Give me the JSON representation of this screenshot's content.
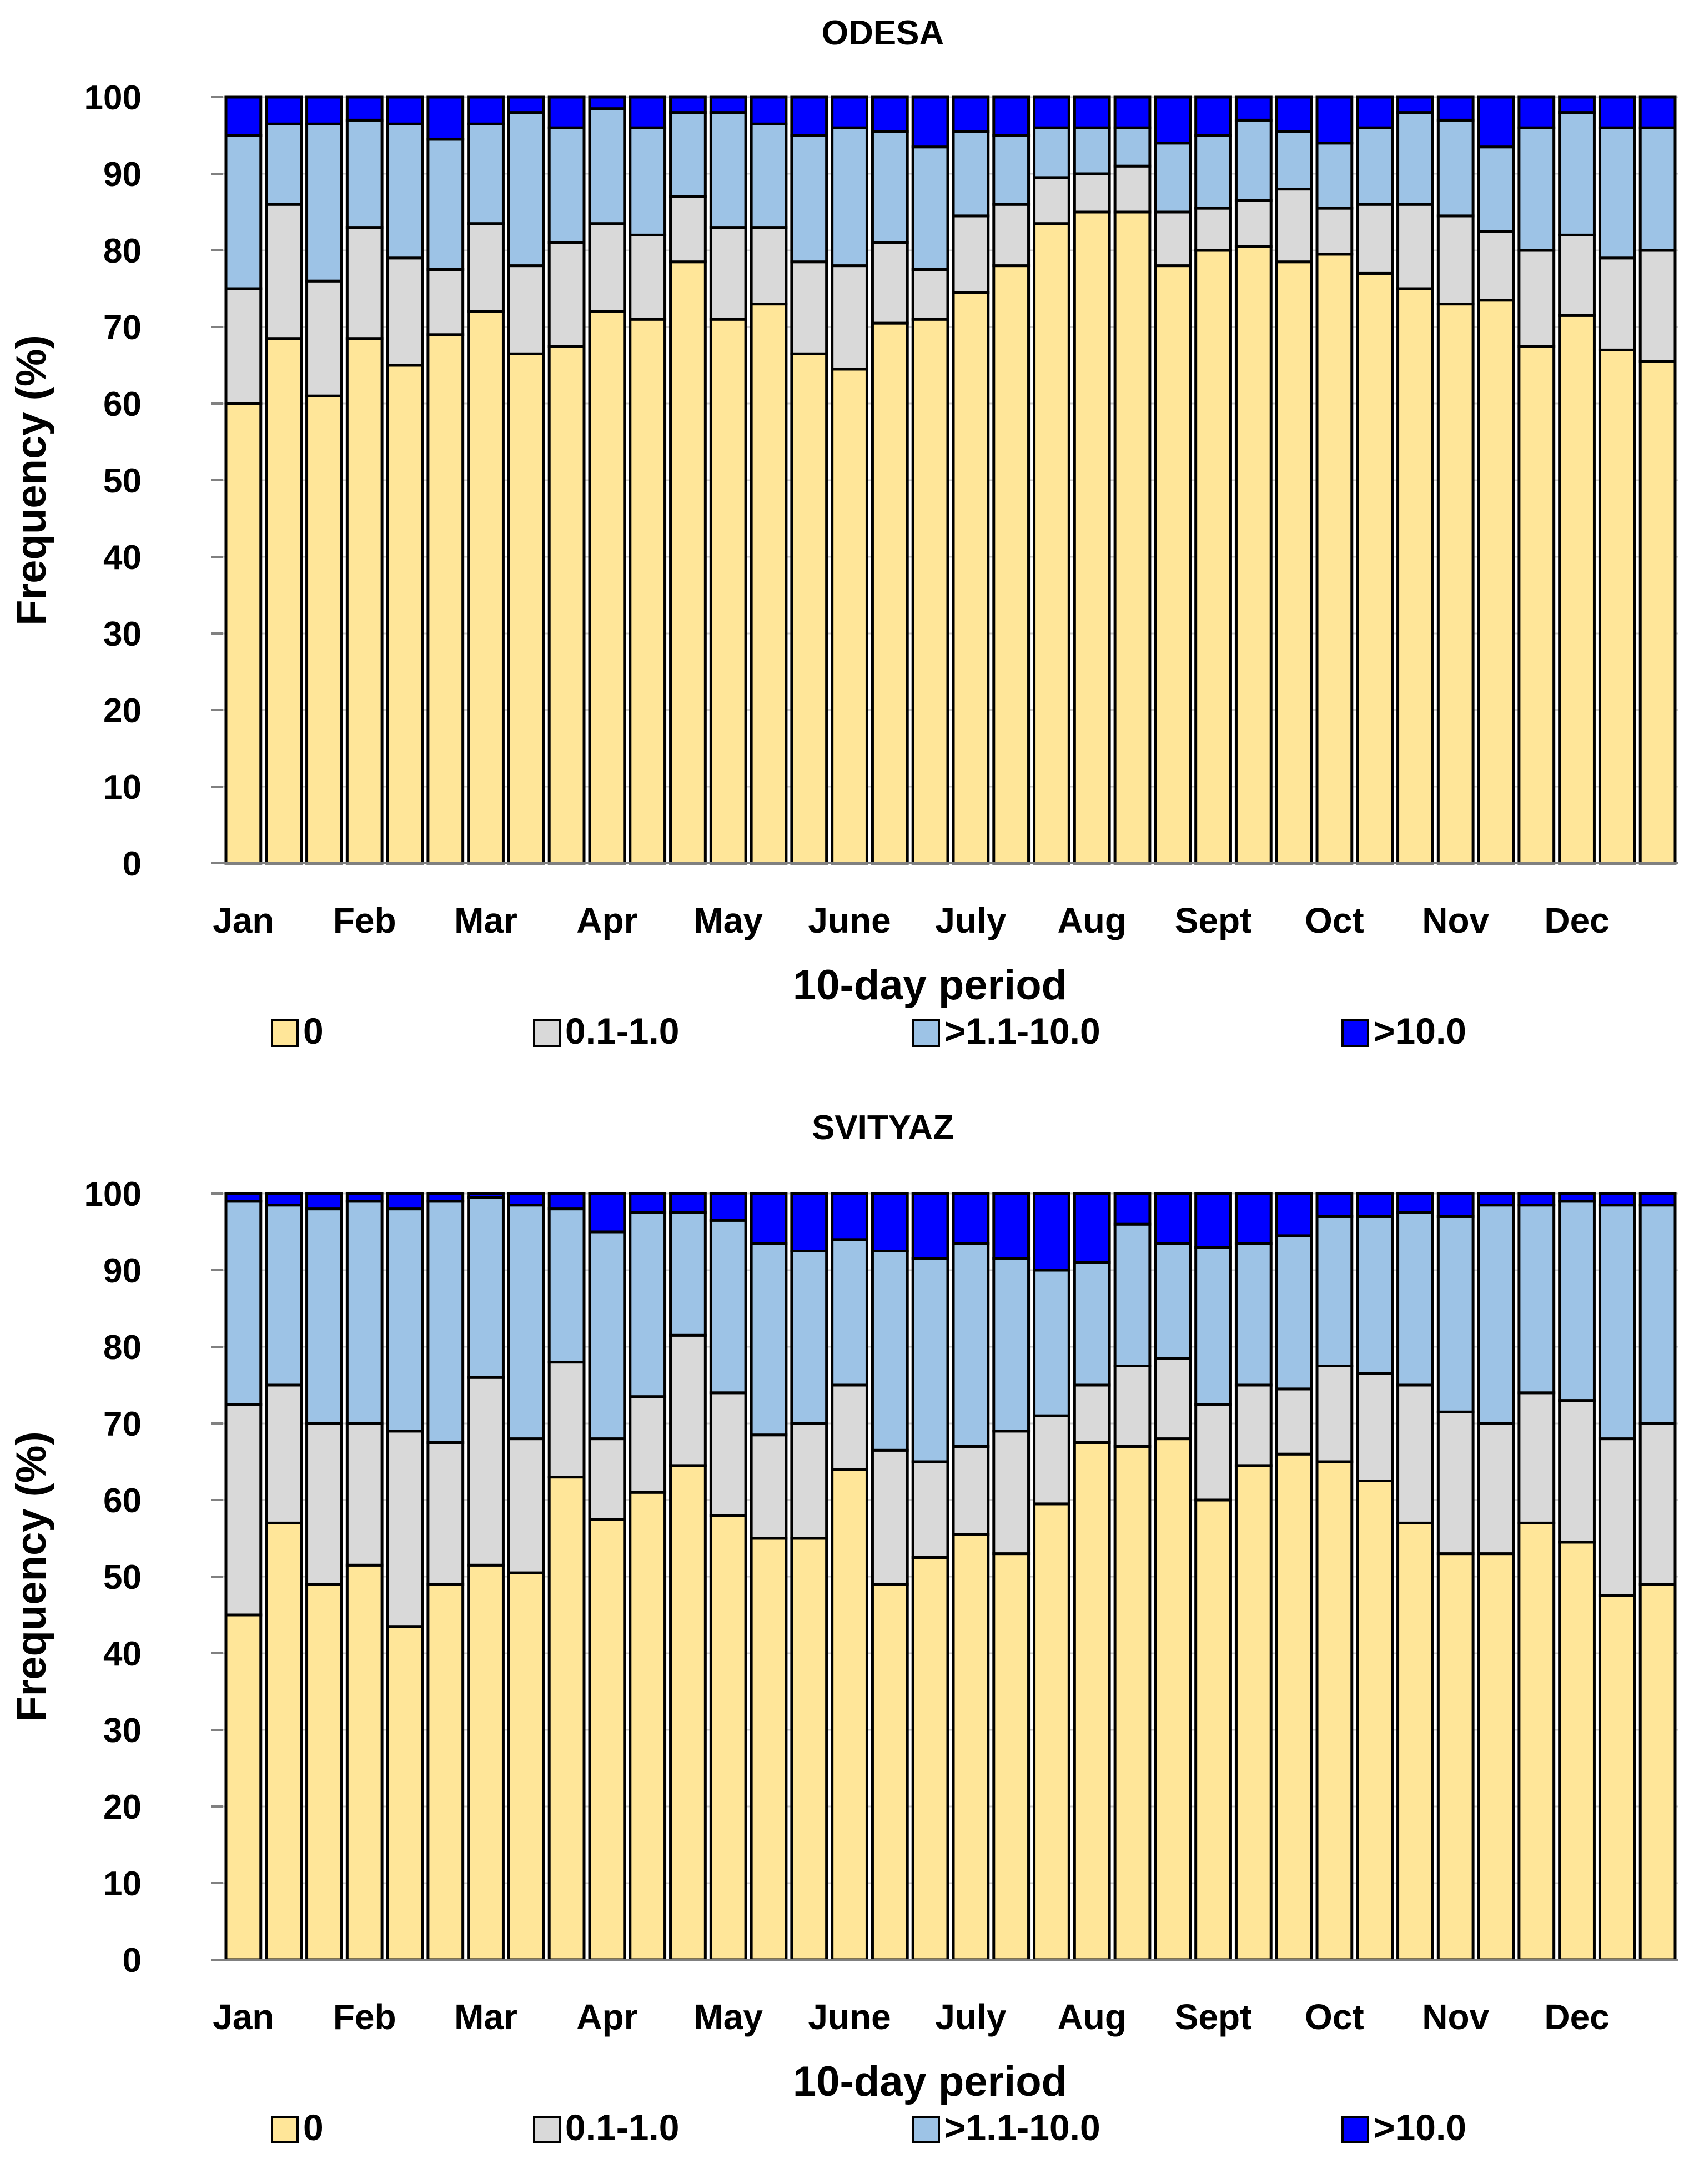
{
  "chart_data": [
    {
      "type": "bar",
      "stacked": true,
      "title": "ODESA",
      "xlabel": "10-day period",
      "ylabel": "Frequency (%)",
      "ylim": [
        0,
        100
      ],
      "yticks": [
        "0",
        "10",
        "20",
        "30",
        "40",
        "50",
        "60",
        "70",
        "80",
        "90",
        "100"
      ],
      "grid": true,
      "legend_position": "bottom",
      "month_labels": [
        "Jan",
        "Feb",
        "Mar",
        "Apr",
        "May",
        "June",
        "July",
        "Aug",
        "Sept",
        "Oct",
        "Nov",
        "Dec"
      ],
      "periods_per_month": 3,
      "series": [
        {
          "name": "0",
          "color": "#FFE699",
          "values": [
            60,
            68.5,
            61,
            68.5,
            65,
            69,
            72,
            66.5,
            67.5,
            72,
            71,
            78.5,
            71,
            73,
            66.5,
            64.5,
            70.5,
            71,
            74.5,
            78,
            83.5,
            85,
            85,
            78,
            80,
            80.5,
            78.5,
            79.5,
            77,
            75,
            73,
            73.5,
            67.5,
            71.5,
            67,
            65.5
          ]
        },
        {
          "name": "0.1-1.0",
          "color": "#D9D9D9",
          "values": [
            15,
            17.5,
            15,
            14.5,
            14,
            8.5,
            11.5,
            11.5,
            13.5,
            11.5,
            11,
            8.5,
            12,
            10,
            12,
            13.5,
            10.5,
            6.5,
            10,
            8,
            6,
            5,
            6,
            7,
            5.5,
            6,
            9.5,
            6,
            9,
            11,
            11.5,
            9,
            12.5,
            10.5,
            12,
            14.5
          ]
        },
        {
          "name": ">1.1-10.0",
          "color": "#9DC3E6",
          "values": [
            20,
            10.5,
            20.5,
            14,
            17.5,
            17,
            13,
            20,
            15,
            15,
            14,
            11,
            15,
            13.5,
            16.5,
            18,
            14.5,
            16,
            11,
            9,
            6.5,
            6,
            5,
            9,
            9.5,
            10.5,
            7.5,
            8.5,
            10,
            12,
            12.5,
            11,
            16,
            16,
            17,
            16
          ]
        },
        {
          "name": ">10.0",
          "color": "#0000FF",
          "values": [
            5,
            3.5,
            3.5,
            3,
            3.5,
            5.5,
            3.5,
            2,
            4,
            1.5,
            4,
            2,
            2,
            3.5,
            5,
            4,
            4.5,
            6.5,
            4.5,
            5,
            4,
            4,
            4,
            6,
            5,
            3,
            4.5,
            6,
            4,
            2,
            3,
            6.5,
            4,
            2,
            4,
            4
          ]
        }
      ]
    },
    {
      "type": "bar",
      "stacked": true,
      "title": "SVITYAZ",
      "xlabel": "10-day period",
      "ylabel": "Frequency (%)",
      "ylim": [
        0,
        100
      ],
      "yticks": [
        "0",
        "10",
        "20",
        "30",
        "40",
        "50",
        "60",
        "70",
        "80",
        "90",
        "100"
      ],
      "grid": true,
      "legend_position": "bottom",
      "month_labels": [
        "Jan",
        "Feb",
        "Mar",
        "Apr",
        "May",
        "June",
        "July",
        "Aug",
        "Sept",
        "Oct",
        "Nov",
        "Dec"
      ],
      "periods_per_month": 3,
      "series": [
        {
          "name": "0",
          "color": "#FFE699",
          "values": [
            45,
            57,
            49,
            51.5,
            43.5,
            49,
            51.5,
            50.5,
            63,
            57.5,
            61,
            64.5,
            58,
            55,
            55,
            64,
            49,
            52.5,
            55.5,
            53,
            59.5,
            67.5,
            67,
            68,
            60,
            64.5,
            66,
            65,
            62.5,
            57,
            53,
            53,
            57,
            54.5,
            47.5,
            49
          ]
        },
        {
          "name": "0.1-1.0",
          "color": "#D9D9D9",
          "values": [
            27.5,
            18,
            21,
            18.5,
            25.5,
            18.5,
            24.5,
            17.5,
            15,
            10.5,
            12.5,
            17,
            16,
            13.5,
            15,
            11,
            17.5,
            12.5,
            11.5,
            16,
            11.5,
            7.5,
            10.5,
            10.5,
            12.5,
            10.5,
            8.5,
            12.5,
            14,
            18,
            18.5,
            17,
            17,
            18.5,
            20.5,
            21
          ]
        },
        {
          "name": ">1.1-10.0",
          "color": "#9DC3E6",
          "values": [
            26.5,
            23.5,
            28,
            29,
            29,
            31.5,
            23.5,
            30.5,
            20,
            27,
            24,
            16,
            22.5,
            25,
            22.5,
            19,
            26,
            26.5,
            26.5,
            22.5,
            19,
            16,
            18.5,
            15,
            20.5,
            18.5,
            20,
            19.5,
            20.5,
            22.5,
            25.5,
            28.5,
            24.5,
            26,
            30.5,
            28.5
          ]
        },
        {
          "name": ">10.0",
          "color": "#0000FF",
          "values": [
            1,
            1.5,
            2,
            1,
            2,
            1,
            0.5,
            1.5,
            2,
            5,
            2.5,
            2.5,
            3.5,
            6.5,
            7.5,
            6,
            7.5,
            8.5,
            6.5,
            8.5,
            10,
            9,
            4,
            6.5,
            7,
            6.5,
            5.5,
            3,
            3,
            2.5,
            3,
            1.5,
            1.5,
            1,
            1.5,
            1.5
          ]
        }
      ]
    }
  ]
}
